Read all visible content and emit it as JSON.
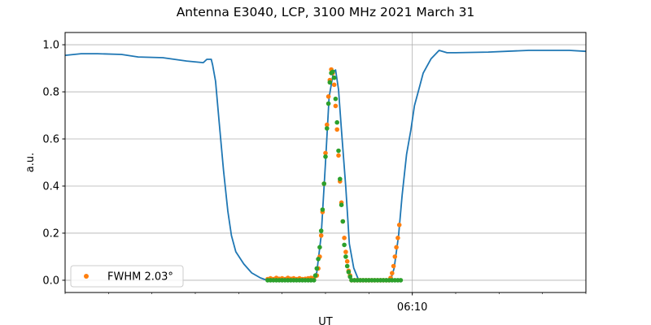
{
  "chart_data": {
    "type": "line",
    "title": "Antenna E3040, LCP, 3100 MHz 2021 March 31",
    "xlabel": "UT",
    "ylabel": "a.u.",
    "xlim": [
      "06:02:00",
      "06:14:00"
    ],
    "ylim": [
      -0.052,
      1.052
    ],
    "x_major_ticks": [
      {
        "value": "06:10:00",
        "label": "06:10"
      }
    ],
    "x_minor_ticks": [
      "06:02:00",
      "06:03:00",
      "06:04:00",
      "06:05:00",
      "06:06:00",
      "06:07:00",
      "06:08:00",
      "06:09:00",
      "06:11:00",
      "06:12:00",
      "06:13:00",
      "06:14:00"
    ],
    "y_ticks": [
      {
        "value": 0.0,
        "label": "0.0"
      },
      {
        "value": 0.2,
        "label": "0.2"
      },
      {
        "value": 0.4,
        "label": "0.4"
      },
      {
        "value": 0.6,
        "label": "0.6"
      },
      {
        "value": 0.8,
        "label": "0.8"
      },
      {
        "value": 1.0,
        "label": "1.0"
      }
    ],
    "grid": {
      "horizontal": true,
      "vertical": "major-only"
    },
    "legend": {
      "placement": "lower-left",
      "entries": [
        {
          "label": "FWHM 2.03°",
          "series": 1
        }
      ]
    },
    "series": [
      {
        "kind": "line",
        "color": "#1f77b4",
        "points": [
          [
            "06:02:00",
            0.955
          ],
          [
            "06:02:22",
            0.962
          ],
          [
            "06:02:45",
            0.962
          ],
          [
            "06:03:18",
            0.959
          ],
          [
            "06:03:41",
            0.948
          ],
          [
            "06:04:15",
            0.945
          ],
          [
            "06:04:48",
            0.931
          ],
          [
            "06:05:11",
            0.924
          ],
          [
            "06:05:16",
            0.938
          ],
          [
            "06:05:22",
            0.938
          ],
          [
            "06:05:24",
            0.914
          ],
          [
            "06:05:28",
            0.845
          ],
          [
            "06:05:33",
            0.672
          ],
          [
            "06:05:39",
            0.466
          ],
          [
            "06:05:45",
            0.293
          ],
          [
            "06:05:50",
            0.19
          ],
          [
            "06:05:56",
            0.121
          ],
          [
            "06:06:07",
            0.069
          ],
          [
            "06:06:18",
            0.031
          ],
          [
            "06:06:30",
            0.01
          ],
          [
            "06:06:39",
            0.0
          ],
          [
            "06:07:03",
            0.0
          ],
          [
            "06:07:43",
            0.0
          ],
          [
            "06:07:48",
            0.034
          ],
          [
            "06:07:54",
            0.19
          ],
          [
            "06:08:00",
            0.5
          ],
          [
            "06:08:05",
            0.776
          ],
          [
            "06:08:11",
            0.886
          ],
          [
            "06:08:14",
            0.893
          ],
          [
            "06:08:18",
            0.81
          ],
          [
            "06:08:22",
            0.638
          ],
          [
            "06:08:28",
            0.397
          ],
          [
            "06:08:33",
            0.155
          ],
          [
            "06:08:39",
            0.052
          ],
          [
            "06:08:45",
            0.007
          ],
          [
            "06:08:50",
            0.0
          ],
          [
            "06:09:30",
            0.0
          ],
          [
            "06:09:35",
            0.052
          ],
          [
            "06:09:41",
            0.19
          ],
          [
            "06:09:46",
            0.362
          ],
          [
            "06:09:52",
            0.534
          ],
          [
            "06:09:58",
            0.638
          ],
          [
            "06:10:03",
            0.741
          ],
          [
            "06:10:09",
            0.81
          ],
          [
            "06:10:15",
            0.879
          ],
          [
            "06:10:26",
            0.941
          ],
          [
            "06:10:37",
            0.976
          ],
          [
            "06:10:48",
            0.966
          ],
          [
            "06:11:00",
            0.966
          ],
          [
            "06:11:45",
            0.969
          ],
          [
            "06:12:41",
            0.976
          ],
          [
            "06:13:37",
            0.976
          ],
          [
            "06:14:00",
            0.972
          ]
        ]
      },
      {
        "kind": "scatter",
        "color": "#ff7f0e",
        "name": "FWHM 2.03°",
        "points": [
          [
            "06:06:40",
            0.005
          ],
          [
            "06:06:44",
            0.008
          ],
          [
            "06:06:48",
            0.005
          ],
          [
            "06:06:52",
            0.01
          ],
          [
            "06:06:56",
            0.006
          ],
          [
            "06:07:00",
            0.008
          ],
          [
            "06:07:04",
            0.005
          ],
          [
            "06:07:08",
            0.01
          ],
          [
            "06:07:12",
            0.006
          ],
          [
            "06:07:16",
            0.008
          ],
          [
            "06:07:20",
            0.005
          ],
          [
            "06:07:24",
            0.008
          ],
          [
            "06:07:28",
            0.005
          ],
          [
            "06:07:32",
            0.006
          ],
          [
            "06:07:36",
            0.008
          ],
          [
            "06:07:40",
            0.01
          ],
          [
            "06:07:44",
            0.01
          ],
          [
            "06:07:48",
            0.02
          ],
          [
            "06:07:50",
            0.05
          ],
          [
            "06:07:52",
            0.1
          ],
          [
            "06:07:54",
            0.19
          ],
          [
            "06:07:56",
            0.29
          ],
          [
            "06:07:58",
            0.41
          ],
          [
            "06:08:00",
            0.54
          ],
          [
            "06:08:02",
            0.66
          ],
          [
            "06:08:04",
            0.78
          ],
          [
            "06:08:06",
            0.85
          ],
          [
            "06:08:08",
            0.895
          ],
          [
            "06:08:10",
            0.88
          ],
          [
            "06:08:12",
            0.83
          ],
          [
            "06:08:14",
            0.74
          ],
          [
            "06:08:16",
            0.64
          ],
          [
            "06:08:18",
            0.53
          ],
          [
            "06:08:20",
            0.42
          ],
          [
            "06:08:22",
            0.33
          ],
          [
            "06:08:24",
            0.25
          ],
          [
            "06:08:26",
            0.18
          ],
          [
            "06:08:28",
            0.12
          ],
          [
            "06:08:30",
            0.08
          ],
          [
            "06:08:32",
            0.04
          ],
          [
            "06:08:34",
            0.02
          ],
          [
            "06:08:36",
            0.0
          ],
          [
            "06:08:40",
            0.0
          ],
          [
            "06:08:44",
            0.0
          ],
          [
            "06:08:48",
            0.0
          ],
          [
            "06:08:52",
            0.0
          ],
          [
            "06:08:56",
            0.0
          ],
          [
            "06:09:00",
            0.0
          ],
          [
            "06:09:04",
            0.0
          ],
          [
            "06:09:08",
            0.0
          ],
          [
            "06:09:12",
            0.0
          ],
          [
            "06:09:16",
            0.0
          ],
          [
            "06:09:20",
            0.0
          ],
          [
            "06:09:24",
            0.0
          ],
          [
            "06:09:28",
            0.0
          ],
          [
            "06:09:30",
            0.01
          ],
          [
            "06:09:32",
            0.03
          ],
          [
            "06:09:34",
            0.06
          ],
          [
            "06:09:36",
            0.1
          ],
          [
            "06:09:38",
            0.14
          ],
          [
            "06:09:40",
            0.18
          ],
          [
            "06:09:42",
            0.235
          ]
        ]
      },
      {
        "kind": "scatter",
        "color": "#2ca02c",
        "points": [
          [
            "06:06:40",
            0.0
          ],
          [
            "06:06:44",
            0.0
          ],
          [
            "06:06:48",
            0.0
          ],
          [
            "06:06:52",
            0.0
          ],
          [
            "06:06:56",
            0.0
          ],
          [
            "06:07:00",
            0.0
          ],
          [
            "06:07:04",
            0.0
          ],
          [
            "06:07:08",
            0.0
          ],
          [
            "06:07:12",
            0.0
          ],
          [
            "06:07:16",
            0.0
          ],
          [
            "06:07:20",
            0.0
          ],
          [
            "06:07:24",
            0.0
          ],
          [
            "06:07:28",
            0.0
          ],
          [
            "06:07:32",
            0.0
          ],
          [
            "06:07:36",
            0.0
          ],
          [
            "06:07:40",
            0.0
          ],
          [
            "06:07:44",
            0.0
          ],
          [
            "06:07:46",
            0.02
          ],
          [
            "06:07:48",
            0.05
          ],
          [
            "06:07:50",
            0.09
          ],
          [
            "06:07:52",
            0.14
          ],
          [
            "06:07:54",
            0.21
          ],
          [
            "06:07:56",
            0.3
          ],
          [
            "06:07:58",
            0.41
          ],
          [
            "06:08:00",
            0.525
          ],
          [
            "06:08:02",
            0.645
          ],
          [
            "06:08:04",
            0.75
          ],
          [
            "06:08:06",
            0.84
          ],
          [
            "06:08:08",
            0.88
          ],
          [
            "06:08:10",
            0.885
          ],
          [
            "06:08:12",
            0.86
          ],
          [
            "06:08:14",
            0.77
          ],
          [
            "06:08:16",
            0.67
          ],
          [
            "06:08:18",
            0.55
          ],
          [
            "06:08:20",
            0.43
          ],
          [
            "06:08:22",
            0.32
          ],
          [
            "06:08:24",
            0.25
          ],
          [
            "06:08:26",
            0.15
          ],
          [
            "06:08:28",
            0.1
          ],
          [
            "06:08:30",
            0.06
          ],
          [
            "06:08:32",
            0.035
          ],
          [
            "06:08:34",
            0.015
          ],
          [
            "06:08:36",
            0.0
          ],
          [
            "06:08:40",
            0.0
          ],
          [
            "06:08:44",
            0.0
          ],
          [
            "06:08:48",
            0.0
          ],
          [
            "06:08:52",
            0.0
          ],
          [
            "06:08:56",
            0.0
          ],
          [
            "06:09:00",
            0.0
          ],
          [
            "06:09:04",
            0.0
          ],
          [
            "06:09:08",
            0.0
          ],
          [
            "06:09:12",
            0.0
          ],
          [
            "06:09:16",
            0.0
          ],
          [
            "06:09:20",
            0.0
          ],
          [
            "06:09:24",
            0.0
          ],
          [
            "06:09:28",
            0.0
          ],
          [
            "06:09:32",
            0.0
          ],
          [
            "06:09:36",
            0.0
          ],
          [
            "06:09:40",
            0.0
          ],
          [
            "06:09:44",
            0.0
          ]
        ]
      }
    ]
  }
}
